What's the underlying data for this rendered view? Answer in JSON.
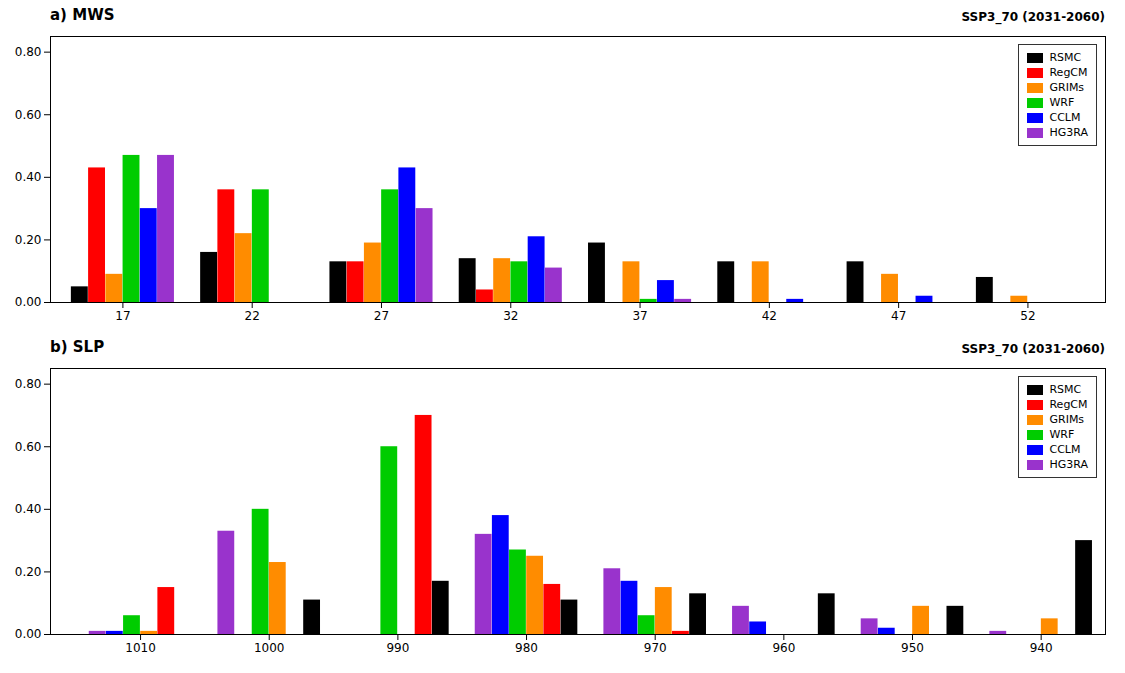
{
  "chart_data": [
    {
      "type": "bar",
      "title": "a) MWS",
      "subtitle": "SSP3_70 (2031-2060)",
      "x": [
        17,
        22,
        27,
        32,
        37,
        42,
        47,
        52
      ],
      "xlim": [
        14.2,
        55.0
      ],
      "xticks": [
        17,
        22,
        27,
        32,
        37,
        42,
        47,
        52
      ],
      "ylim": [
        0.0,
        0.85
      ],
      "yticks": [
        {
          "value": 0.0,
          "label": "0.00"
        },
        {
          "value": 0.2,
          "label": "0.20"
        },
        {
          "value": 0.4,
          "label": "0.40"
        },
        {
          "value": 0.6,
          "label": "0.60"
        },
        {
          "value": 0.8,
          "label": "0.80"
        }
      ],
      "grid": false,
      "legend": "upper right",
      "series": [
        {
          "name": "RSMC",
          "color": "#000000",
          "values": [
            0.05,
            0.16,
            0.13,
            0.14,
            0.19,
            0.13,
            0.13,
            0.08
          ]
        },
        {
          "name": "RegCM",
          "color": "#ff0000",
          "values": [
            0.43,
            0.36,
            0.13,
            0.04,
            0.0,
            0.0,
            0.0,
            0.0
          ]
        },
        {
          "name": "GRIMs",
          "color": "#ff8c00",
          "values": [
            0.09,
            0.22,
            0.19,
            0.14,
            0.13,
            0.13,
            0.09,
            0.02
          ]
        },
        {
          "name": "WRF",
          "color": "#00cc00",
          "values": [
            0.47,
            0.36,
            0.36,
            0.13,
            0.01,
            0.0,
            0.0,
            0.0
          ]
        },
        {
          "name": "CCLM",
          "color": "#0000ff",
          "values": [
            0.3,
            0.0,
            0.43,
            0.21,
            0.07,
            0.01,
            0.02,
            0.0
          ]
        },
        {
          "name": "HG3RA",
          "color": "#9933cc",
          "values": [
            0.47,
            0.0,
            0.3,
            0.11,
            0.01,
            0.0,
            0.0,
            0.0
          ]
        }
      ]
    },
    {
      "type": "bar",
      "title": "b) SLP",
      "subtitle": "SSP3_70 (2031-2060)",
      "x": [
        1010,
        1000,
        990,
        980,
        970,
        960,
        950,
        940
      ],
      "xlim": [
        1017,
        935
      ],
      "xticks": [
        1010,
        1000,
        990,
        980,
        970,
        960,
        950,
        940
      ],
      "ylim": [
        0.0,
        0.85
      ],
      "yticks": [
        {
          "value": 0.0,
          "label": "0.00"
        },
        {
          "value": 0.2,
          "label": "0.20"
        },
        {
          "value": 0.4,
          "label": "0.40"
        },
        {
          "value": 0.6,
          "label": "0.60"
        },
        {
          "value": 0.8,
          "label": "0.80"
        }
      ],
      "grid": false,
      "legend": "upper right",
      "series": [
        {
          "name": "RSMC",
          "color": "#000000",
          "values": [
            0.0,
            0.11,
            0.17,
            0.11,
            0.13,
            0.13,
            0.09,
            0.3
          ]
        },
        {
          "name": "RegCM",
          "color": "#ff0000",
          "values": [
            0.15,
            0.0,
            0.7,
            0.16,
            0.01,
            0.0,
            0.0,
            0.0
          ]
        },
        {
          "name": "GRIMs",
          "color": "#ff8c00",
          "values": [
            0.01,
            0.23,
            0.0,
            0.25,
            0.15,
            0.0,
            0.09,
            0.05
          ]
        },
        {
          "name": "WRF",
          "color": "#00cc00",
          "values": [
            0.06,
            0.4,
            0.6,
            0.27,
            0.06,
            0.0,
            0.0,
            0.0
          ]
        },
        {
          "name": "CCLM",
          "color": "#0000ff",
          "values": [
            0.01,
            0.0,
            0.0,
            0.38,
            0.17,
            0.04,
            0.02,
            0.0
          ]
        },
        {
          "name": "HG3RA",
          "color": "#9933cc",
          "values": [
            0.01,
            0.33,
            0.0,
            0.32,
            0.21,
            0.09,
            0.05,
            0.01
          ]
        }
      ]
    }
  ]
}
